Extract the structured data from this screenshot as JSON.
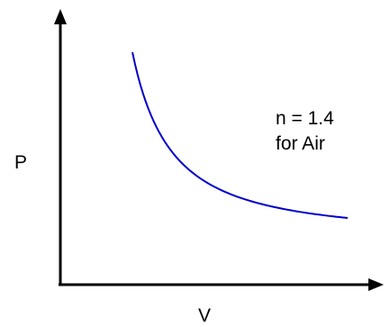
{
  "chart_data": {
    "type": "line",
    "xlabel": "V",
    "ylabel": "P",
    "annotations": [
      "n = 1.4",
      "for Air"
    ],
    "series": [
      {
        "values_description": "",
        "color": "#0000cc",
        "x": [
          1.0,
          1.2,
          1.5,
          2.0,
          2.5,
          3.0,
          3.5,
          4.0,
          4.5,
          5.0
        ],
        "y": [
          1.0,
          0.775,
          0.567,
          0.379,
          0.277,
          0.215,
          0.173,
          0.144,
          0.122,
          0.105
        ]
      }
    ],
    "axis_color": "#000000",
    "grid": false,
    "ticks": false
  }
}
